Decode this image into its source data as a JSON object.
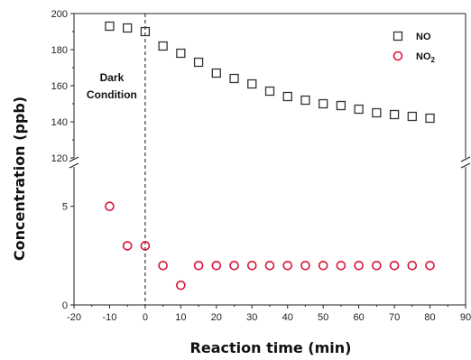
{
  "chart_data": {
    "type": "scatter",
    "xlabel": "Reaction time (min)",
    "ylabel": "Concentration (ppb)",
    "xlim": [
      -20,
      90
    ],
    "x_ticks": [
      -20,
      -10,
      0,
      10,
      20,
      30,
      40,
      50,
      60,
      70,
      80,
      90
    ],
    "y_axis_break": true,
    "y_lower_range": [
      0,
      7
    ],
    "y_lower_ticks": [
      0,
      5
    ],
    "y_upper_range": [
      120,
      200
    ],
    "y_upper_ticks": [
      120,
      140,
      160,
      180,
      200
    ],
    "legend_position": "top-right",
    "annotation": {
      "lines": [
        "Dark",
        "Condition"
      ],
      "x": 0
    },
    "series": [
      {
        "name": "NO",
        "marker": "square",
        "color": "#333333",
        "points": [
          [
            -10,
            193
          ],
          [
            -5,
            192
          ],
          [
            0,
            190
          ],
          [
            5,
            182
          ],
          [
            10,
            178
          ],
          [
            15,
            173
          ],
          [
            20,
            167
          ],
          [
            25,
            164
          ],
          [
            30,
            161
          ],
          [
            35,
            157
          ],
          [
            40,
            154
          ],
          [
            45,
            152
          ],
          [
            50,
            150
          ],
          [
            55,
            149
          ],
          [
            60,
            147
          ],
          [
            65,
            145
          ],
          [
            70,
            144
          ],
          [
            75,
            143
          ],
          [
            80,
            142
          ]
        ]
      },
      {
        "name": "NO",
        "name_subscript": "2",
        "marker": "circle",
        "color": "#d9143a",
        "points": [
          [
            -10,
            5
          ],
          [
            -5,
            3
          ],
          [
            0,
            3
          ],
          [
            5,
            2
          ],
          [
            10,
            1
          ],
          [
            15,
            2
          ],
          [
            20,
            2
          ],
          [
            25,
            2
          ],
          [
            30,
            2
          ],
          [
            35,
            2
          ],
          [
            40,
            2
          ],
          [
            45,
            2
          ],
          [
            50,
            2
          ],
          [
            55,
            2
          ],
          [
            60,
            2
          ],
          [
            65,
            2
          ],
          [
            70,
            2
          ],
          [
            75,
            2
          ],
          [
            80,
            2
          ]
        ]
      }
    ]
  }
}
